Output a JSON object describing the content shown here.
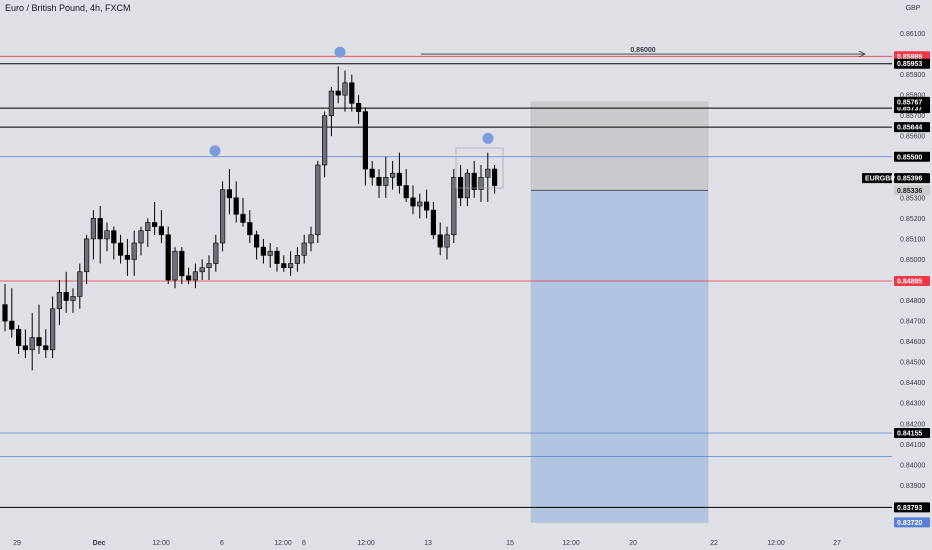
{
  "header": {
    "title": "Euro / British Pound, 4h, FXCM"
  },
  "axis": {
    "currency": "GBP"
  },
  "colors": {
    "background": "#dfe0e6",
    "up_candle": "#6b6f77",
    "down_candle": "#000000",
    "red_line": "#f23645",
    "blue_line": "#5b7fd6",
    "target_zone": "#b1c4e0",
    "stop_zone": "#c9cace",
    "marker": "#7c9bde"
  },
  "chart_data": {
    "type": "candlestick",
    "symbol": "EURGBP",
    "ylim": [
      0.83712,
      0.86195
    ],
    "y_ticks": [
      "0.86100",
      "0.85900",
      "0.85800",
      "0.85700",
      "0.85600",
      "0.85300",
      "0.85200",
      "0.85100",
      "0.85000",
      "0.84800",
      "0.84700",
      "0.84600",
      "0.84500",
      "0.84400",
      "0.84300",
      "0.84200",
      "0.84100",
      "0.84000",
      "0.83900",
      "0.83800"
    ],
    "x_labels": [
      "29",
      "Dec",
      "12:00",
      "6",
      "12:00",
      "8",
      "12:00",
      "13",
      "15",
      "12:00",
      "20",
      "22",
      "12:00",
      "27"
    ],
    "candles": [
      [
        0.8478,
        0.8488,
        0.8465,
        0.847
      ],
      [
        0.847,
        0.8486,
        0.8462,
        0.8466
      ],
      [
        0.8466,
        0.8468,
        0.8454,
        0.8458
      ],
      [
        0.8458,
        0.8466,
        0.8452,
        0.8456
      ],
      [
        0.8456,
        0.8474,
        0.8446,
        0.8462
      ],
      [
        0.8462,
        0.8478,
        0.8454,
        0.8458
      ],
      [
        0.8458,
        0.8466,
        0.8452,
        0.8456
      ],
      [
        0.8456,
        0.8482,
        0.8452,
        0.8476
      ],
      [
        0.8476,
        0.849,
        0.8468,
        0.8484
      ],
      [
        0.8484,
        0.8494,
        0.8474,
        0.848
      ],
      [
        0.848,
        0.8486,
        0.8474,
        0.8482
      ],
      [
        0.8482,
        0.8498,
        0.8476,
        0.8494
      ],
      [
        0.8494,
        0.8512,
        0.8488,
        0.851
      ],
      [
        0.851,
        0.8524,
        0.85,
        0.852
      ],
      [
        0.852,
        0.8526,
        0.8498,
        0.851
      ],
      [
        0.851,
        0.8518,
        0.8504,
        0.8514
      ],
      [
        0.8514,
        0.8516,
        0.85,
        0.8508
      ],
      [
        0.8508,
        0.8512,
        0.8498,
        0.8502
      ],
      [
        0.8502,
        0.851,
        0.8492,
        0.85
      ],
      [
        0.85,
        0.8514,
        0.8492,
        0.8508
      ],
      [
        0.8508,
        0.8516,
        0.8502,
        0.8514
      ],
      [
        0.8514,
        0.852,
        0.8506,
        0.8518
      ],
      [
        0.8518,
        0.8528,
        0.8512,
        0.8516
      ],
      [
        0.8516,
        0.8524,
        0.8508,
        0.8512
      ],
      [
        0.8512,
        0.8516,
        0.8488,
        0.849
      ],
      [
        0.849,
        0.8506,
        0.8486,
        0.8504
      ],
      [
        0.8504,
        0.8506,
        0.8488,
        0.8492
      ],
      [
        0.8492,
        0.8496,
        0.8488,
        0.849
      ],
      [
        0.849,
        0.8498,
        0.8486,
        0.8494
      ],
      [
        0.8494,
        0.85,
        0.849,
        0.8496
      ],
      [
        0.8496,
        0.8502,
        0.849,
        0.8498
      ],
      [
        0.8498,
        0.8512,
        0.8494,
        0.8508
      ],
      [
        0.8508,
        0.8538,
        0.8504,
        0.8534
      ],
      [
        0.8534,
        0.8544,
        0.8522,
        0.853
      ],
      [
        0.853,
        0.8538,
        0.8518,
        0.8522
      ],
      [
        0.8522,
        0.853,
        0.8516,
        0.8518
      ],
      [
        0.8518,
        0.8524,
        0.8508,
        0.8512
      ],
      [
        0.8512,
        0.8514,
        0.85,
        0.8506
      ],
      [
        0.8506,
        0.851,
        0.8498,
        0.8502
      ],
      [
        0.8502,
        0.8508,
        0.8496,
        0.8504
      ],
      [
        0.8504,
        0.8506,
        0.8494,
        0.8498
      ],
      [
        0.8498,
        0.8502,
        0.8494,
        0.8496
      ],
      [
        0.8496,
        0.8504,
        0.8492,
        0.8498
      ],
      [
        0.8498,
        0.8506,
        0.8494,
        0.8502
      ],
      [
        0.8502,
        0.8512,
        0.8498,
        0.8508
      ],
      [
        0.8508,
        0.8516,
        0.8504,
        0.8512
      ],
      [
        0.8512,
        0.8548,
        0.8508,
        0.8546
      ],
      [
        0.8546,
        0.8572,
        0.854,
        0.857
      ],
      [
        0.857,
        0.8584,
        0.856,
        0.8582
      ],
      [
        0.8582,
        0.8594,
        0.8576,
        0.858
      ],
      [
        0.858,
        0.8592,
        0.8572,
        0.8586
      ],
      [
        0.8586,
        0.859,
        0.8572,
        0.8576
      ],
      [
        0.8576,
        0.858,
        0.8566,
        0.8572
      ],
      [
        0.8572,
        0.8574,
        0.8536,
        0.8544
      ],
      [
        0.8544,
        0.8548,
        0.8536,
        0.854
      ],
      [
        0.854,
        0.8544,
        0.853,
        0.8536
      ],
      [
        0.8536,
        0.855,
        0.853,
        0.854
      ],
      [
        0.854,
        0.8548,
        0.8534,
        0.8542
      ],
      [
        0.8542,
        0.8552,
        0.8532,
        0.8536
      ],
      [
        0.8536,
        0.8544,
        0.8528,
        0.853
      ],
      [
        0.853,
        0.8536,
        0.8522,
        0.8526
      ],
      [
        0.8526,
        0.8532,
        0.852,
        0.8528
      ],
      [
        0.8528,
        0.8534,
        0.852,
        0.8524
      ],
      [
        0.8524,
        0.8528,
        0.851,
        0.8512
      ],
      [
        0.8512,
        0.8518,
        0.8502,
        0.8506
      ],
      [
        0.8506,
        0.8516,
        0.85,
        0.8512
      ],
      [
        0.8512,
        0.8544,
        0.8508,
        0.854
      ],
      [
        0.854,
        0.8546,
        0.8526,
        0.853
      ],
      [
        0.853,
        0.8544,
        0.8526,
        0.8542
      ],
      [
        0.8542,
        0.8548,
        0.853,
        0.8534
      ],
      [
        0.8534,
        0.8546,
        0.8528,
        0.854
      ],
      [
        0.854,
        0.8552,
        0.8528,
        0.8544
      ],
      [
        0.8544,
        0.8546,
        0.8532,
        0.8536
      ]
    ],
    "levels": [
      {
        "name": "red-top",
        "price": 0.85989,
        "tag": "0.85989",
        "color": "red"
      },
      {
        "name": "black-top",
        "price": 0.85953,
        "tag": "0.85953",
        "color": "black"
      },
      {
        "name": "black-2",
        "price": 0.85737,
        "tag": "0.85737",
        "color": "black"
      },
      {
        "name": "black-3",
        "price": 0.85644,
        "tag": "0.85644",
        "color": "black"
      },
      {
        "name": "blue-1",
        "price": 0.855,
        "tag": "0.85500",
        "color": "blue"
      },
      {
        "name": "red-2",
        "price": 0.84895,
        "tag": "0.84895",
        "color": "red"
      },
      {
        "name": "blue-2",
        "price": 0.84155,
        "tag": "0.84155",
        "color": "blue"
      },
      {
        "name": "blue-3",
        "price": 0.8404,
        "tag": "",
        "color": "blue"
      },
      {
        "name": "black-bottom",
        "price": 0.83793,
        "tag": "0.83793",
        "color": "black"
      }
    ],
    "price_tags": [
      {
        "text": "0.85767",
        "price": 0.85767,
        "style": "dark"
      },
      {
        "text": "0.85396",
        "price": 0.85396,
        "style": "dark",
        "symbol": "EURGBP"
      },
      {
        "text": "0.85336",
        "price": 0.85336,
        "style": "grey"
      },
      {
        "text": "0.83720",
        "price": 0.8372,
        "style": "blue"
      }
    ],
    "arrow": {
      "label": "0.86000",
      "price": 0.86
    },
    "position": {
      "entry": 0.85336,
      "stop": 0.85767,
      "target": 0.8372
    },
    "markers": [
      0.8598,
      0.855,
      0.8556
    ],
    "grid": false
  }
}
